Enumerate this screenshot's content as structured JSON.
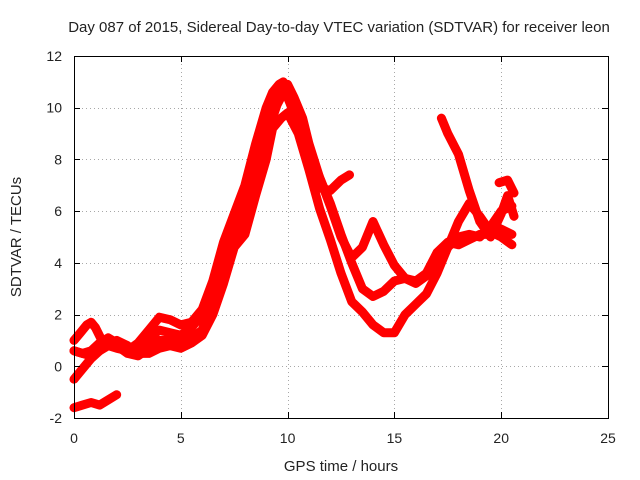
{
  "chart_data": {
    "type": "scatter",
    "title": "Day 087 of 2015, Sidereal Day-to-day VTEC variation (SDTVAR) for receiver leon",
    "xlabel": "GPS time / hours",
    "ylabel": "SDTVAR / TECUs",
    "xlim": [
      0,
      25
    ],
    "ylim": [
      -2,
      12
    ],
    "xticks": [
      0,
      5,
      10,
      15,
      20,
      25
    ],
    "yticks": [
      -2,
      0,
      2,
      4,
      6,
      8,
      10,
      12
    ],
    "xtick_labels": [
      "0",
      "5",
      "10",
      "15",
      "20",
      "25"
    ],
    "ytick_labels": [
      "-2",
      "0",
      "2",
      "4",
      "6",
      "8",
      "10",
      "12"
    ],
    "grid": true,
    "marker": "+",
    "color": "#ff0000",
    "series": [
      {
        "name": "track-1",
        "x": [
          0.0,
          0.3,
          0.6,
          0.8,
          1.0,
          1.3,
          1.6,
          2.0,
          2.5,
          3.0,
          3.5,
          4.0,
          4.5,
          5.0,
          5.5,
          6.0,
          6.5,
          7.0,
          7.5,
          8.0,
          8.5,
          9.0,
          9.3,
          9.6,
          9.8,
          10.0,
          10.3,
          10.6,
          11.0,
          11.5,
          12.0,
          12.5,
          12.9
        ],
        "y": [
          1.0,
          1.3,
          1.6,
          1.7,
          1.5,
          1.0,
          0.8,
          0.7,
          0.6,
          0.9,
          1.4,
          1.9,
          1.8,
          1.6,
          1.7,
          2.2,
          3.3,
          4.8,
          5.9,
          7.0,
          8.6,
          10.0,
          10.6,
          10.9,
          11.0,
          10.6,
          9.9,
          9.0,
          7.8,
          6.9,
          6.8,
          7.2,
          7.4
        ]
      },
      {
        "name": "track-2",
        "x": [
          0.0,
          0.4,
          0.8,
          1.2,
          1.6,
          2.0,
          2.5,
          3.0,
          3.5,
          4.0,
          4.5,
          5.0,
          5.5,
          6.0,
          6.5,
          7.0,
          7.5,
          8.0,
          8.5,
          9.0,
          9.5,
          9.8,
          10.1,
          10.5,
          11.0,
          11.5,
          12.0,
          12.5,
          13.0,
          13.5,
          14.0,
          14.5,
          15.0,
          15.5,
          16.0,
          16.5,
          17.0,
          17.5,
          18.0,
          18.5,
          19.0,
          19.5,
          20.0,
          20.5
        ],
        "y": [
          0.6,
          0.5,
          0.6,
          0.9,
          1.1,
          0.9,
          0.7,
          0.8,
          1.1,
          1.4,
          1.3,
          1.2,
          1.5,
          2.0,
          3.2,
          4.4,
          5.6,
          6.6,
          8.1,
          9.4,
          10.4,
          10.8,
          10.2,
          9.3,
          8.3,
          7.3,
          6.2,
          5.0,
          4.2,
          4.6,
          5.6,
          4.7,
          3.9,
          3.4,
          3.2,
          3.5,
          4.0,
          4.6,
          5.0,
          5.1,
          5.0,
          5.4,
          6.0,
          6.2
        ]
      },
      {
        "name": "track-3",
        "x": [
          0.0,
          0.4,
          0.8,
          1.2,
          1.6,
          2.0,
          2.5,
          3.0,
          3.5,
          4.0,
          4.5,
          5.0,
          5.5,
          6.0,
          6.5,
          7.0,
          7.5,
          8.0,
          8.5,
          9.0,
          9.5,
          10.0,
          10.3,
          10.7,
          11.0,
          11.5,
          12.0,
          12.5,
          13.0,
          13.5,
          14.0,
          14.5,
          15.0,
          15.5,
          16.0,
          16.5,
          17.0,
          17.5,
          18.0,
          18.5,
          19.0,
          19.5,
          20.0,
          20.5
        ],
        "y": [
          -0.5,
          -0.1,
          0.3,
          0.6,
          0.8,
          0.8,
          0.5,
          0.4,
          0.7,
          1.0,
          1.0,
          0.9,
          1.1,
          1.4,
          2.6,
          3.7,
          4.9,
          5.9,
          7.3,
          8.9,
          10.1,
          10.9,
          10.4,
          9.6,
          8.6,
          7.3,
          6.3,
          5.1,
          4.0,
          3.0,
          2.7,
          2.9,
          3.3,
          3.4,
          3.3,
          3.6,
          4.4,
          4.8,
          4.7,
          4.9,
          5.1,
          5.1,
          5.3,
          5.1
        ]
      },
      {
        "name": "track-4",
        "x": [
          0.0,
          0.4,
          0.8,
          1.2,
          1.6,
          2.0,
          2.5,
          3.0,
          3.5,
          4.0,
          4.5,
          5.0,
          5.5,
          6.0,
          6.5,
          7.0,
          7.5,
          8.0,
          8.5,
          9.0,
          9.3,
          9.7,
          10.0,
          10.5,
          11.0,
          11.5,
          12.0,
          12.5,
          13.0,
          13.5,
          14.0,
          14.5,
          15.0,
          15.5,
          16.0,
          16.5,
          17.0,
          17.5,
          18.0,
          18.5,
          19.0,
          19.5,
          20.0,
          20.5
        ],
        "y": [
          0.6,
          0.5,
          0.4,
          0.6,
          0.9,
          1.0,
          0.8,
          0.5,
          0.5,
          0.7,
          0.8,
          0.7,
          0.9,
          1.2,
          2.0,
          3.2,
          4.6,
          5.1,
          6.6,
          8.0,
          9.2,
          9.6,
          9.8,
          9.0,
          7.6,
          6.1,
          4.9,
          3.6,
          2.5,
          2.1,
          1.6,
          1.3,
          1.3,
          2.0,
          2.4,
          2.8,
          3.6,
          4.6,
          5.6,
          6.3,
          5.8,
          5.2,
          5.0,
          4.7
        ]
      },
      {
        "name": "track-5",
        "x": [
          17.2,
          17.5,
          18.0,
          18.5,
          19.0,
          19.5,
          20.0,
          20.3,
          20.6
        ],
        "y": [
          9.6,
          9.0,
          8.2,
          6.8,
          5.6,
          5.0,
          5.9,
          6.6,
          5.8
        ]
      },
      {
        "name": "track-6",
        "x": [
          19.9,
          20.3,
          20.6
        ],
        "y": [
          7.1,
          7.2,
          6.7
        ]
      },
      {
        "name": "track-7",
        "x": [
          0.0,
          0.4,
          0.8,
          1.2,
          1.6,
          2.0
        ],
        "y": [
          -1.6,
          -1.5,
          -1.4,
          -1.5,
          -1.3,
          -1.1
        ]
      }
    ]
  }
}
